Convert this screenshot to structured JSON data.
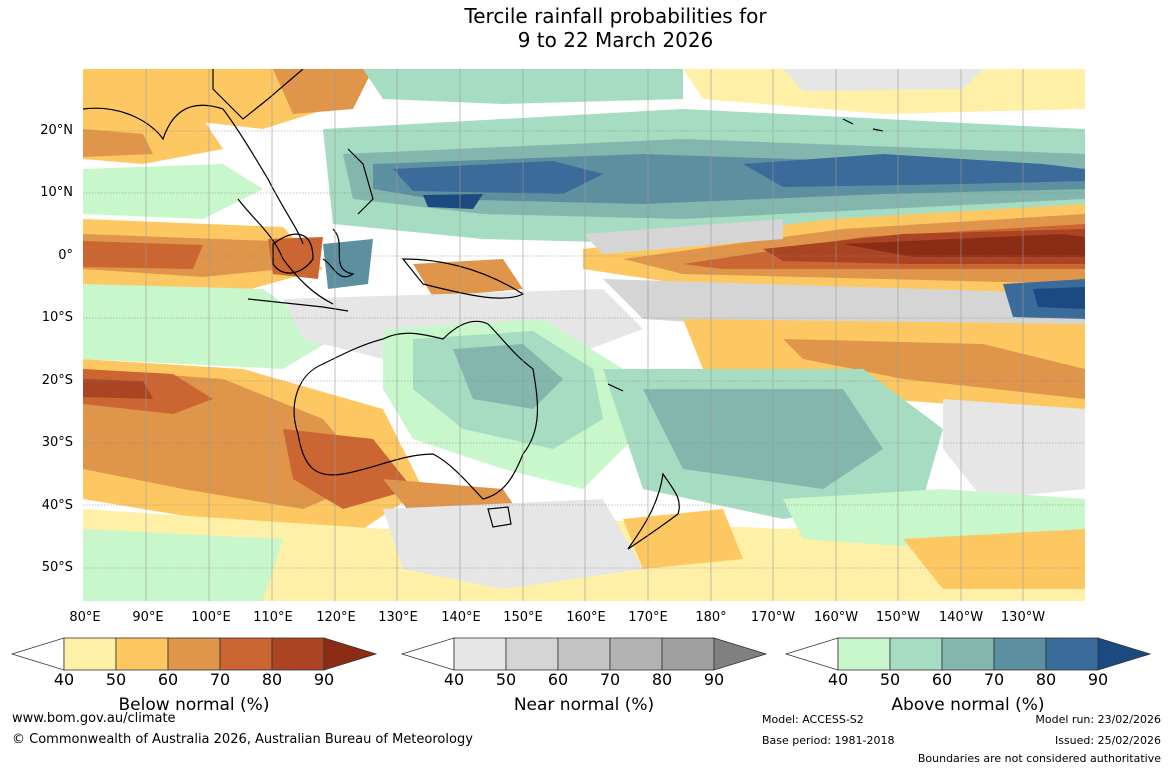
{
  "title_line1": "Tercile rainfall probabilities for",
  "title_line2": "9 to 22 March 2026",
  "map": {
    "lat_labels": [
      "20°N",
      "10°N",
      "0°",
      "10°S",
      "20°S",
      "30°S",
      "40°S",
      "50°S"
    ],
    "lon_labels": [
      "80°E",
      "90°E",
      "100°E",
      "110°E",
      "120°E",
      "130°E",
      "140°E",
      "150°E",
      "160°E",
      "170°E",
      "180°",
      "170°W",
      "160°W",
      "150°W",
      "140°W",
      "130°W"
    ]
  },
  "legends": {
    "below": {
      "title": "Below normal (%)",
      "ticks": [
        "40",
        "50",
        "60",
        "70",
        "80",
        "90"
      ],
      "colors": [
        "#fff0a8",
        "#fdc862",
        "#e0964a",
        "#cb6532",
        "#aa4422",
        "#8b2c15"
      ]
    },
    "near": {
      "title": "Near normal (%)",
      "ticks": [
        "40",
        "50",
        "60",
        "70",
        "80",
        "90"
      ],
      "colors": [
        "#e6e6e6",
        "#d5d5d5",
        "#c4c4c4",
        "#b3b3b3",
        "#a0a0a0",
        "#808080"
      ]
    },
    "above": {
      "title": "Above normal (%)",
      "ticks": [
        "40",
        "50",
        "60",
        "70",
        "80",
        "90"
      ],
      "colors": [
        "#c9f7cc",
        "#a6dcc2",
        "#83b7ad",
        "#5c8fa0",
        "#3a6b9a",
        "#1b4a80"
      ]
    }
  },
  "footer": {
    "website": "www.bom.gov.au/climate",
    "copyright": "© Commonwealth of Australia 2026, Australian Bureau of Meteorology",
    "model": "Model: ACCESS-S2",
    "base_period": "Base period: 1981-2018",
    "model_run": "Model run: 23/02/2026",
    "issued": "Issued: 25/02/2026",
    "disclaimer": "Boundaries are not considered authoritative"
  }
}
